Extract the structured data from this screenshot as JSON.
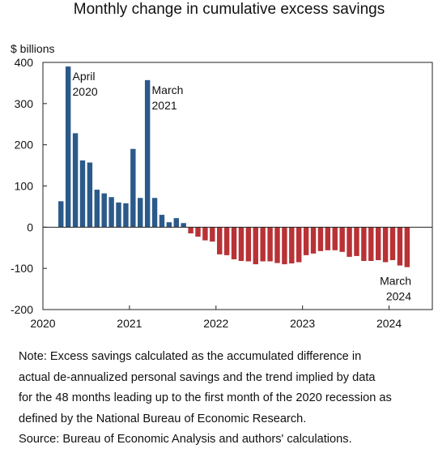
{
  "chart_data": {
    "type": "bar",
    "title": "Monthly change in cumulative excess savings",
    "ylabel": "$ billions",
    "ylim": [
      -200,
      400
    ],
    "yticks": [
      400,
      300,
      200,
      100,
      0,
      -100,
      -200
    ],
    "xlim": [
      "2020-01",
      "2024-07"
    ],
    "xticks": [
      "2020",
      "2021",
      "2022",
      "2023",
      "2024"
    ],
    "grid": false,
    "colors": {
      "positive": "#2b5a8a",
      "negative": "#b83236"
    },
    "x": [
      "2020-03",
      "2020-04",
      "2020-05",
      "2020-06",
      "2020-07",
      "2020-08",
      "2020-09",
      "2020-10",
      "2020-11",
      "2020-12",
      "2021-01",
      "2021-02",
      "2021-03",
      "2021-04",
      "2021-05",
      "2021-06",
      "2021-07",
      "2021-08",
      "2021-09",
      "2021-10",
      "2021-11",
      "2021-12",
      "2022-01",
      "2022-02",
      "2022-03",
      "2022-04",
      "2022-05",
      "2022-06",
      "2022-07",
      "2022-08",
      "2022-09",
      "2022-10",
      "2022-11",
      "2022-12",
      "2023-01",
      "2023-02",
      "2023-03",
      "2023-04",
      "2023-05",
      "2023-06",
      "2023-07",
      "2023-08",
      "2023-09",
      "2023-10",
      "2023-11",
      "2023-12",
      "2024-01",
      "2024-02",
      "2024-03"
    ],
    "values": [
      63,
      390,
      228,
      162,
      157,
      91,
      82,
      73,
      60,
      58,
      190,
      71,
      357,
      71,
      30,
      12,
      22,
      10,
      -15,
      -23,
      -32,
      -35,
      -66,
      -68,
      -78,
      -82,
      -83,
      -90,
      -83,
      -83,
      -87,
      -90,
      -88,
      -85,
      -68,
      -64,
      -58,
      -56,
      -56,
      -60,
      -72,
      -70,
      -82,
      -82,
      -80,
      -85,
      -80,
      -93,
      -97
    ],
    "annotations": [
      {
        "line1": "April",
        "line2": "2020",
        "at": "2020-04"
      },
      {
        "line1": "March",
        "line2": "2021",
        "at": "2021-03"
      },
      {
        "line1": "March",
        "line2": "2024",
        "at": "2024-03"
      }
    ]
  },
  "note": {
    "lines": [
      "Note: Excess savings calculated as the accumulated difference in",
      "actual de-annualized personal savings and the trend implied by data",
      "for the 48 months leading up to the first month of the 2020 recession as",
      "defined by the National Bureau of Economic Research."
    ],
    "source": "Source: Bureau of Economic Analysis and authors' calculations."
  }
}
